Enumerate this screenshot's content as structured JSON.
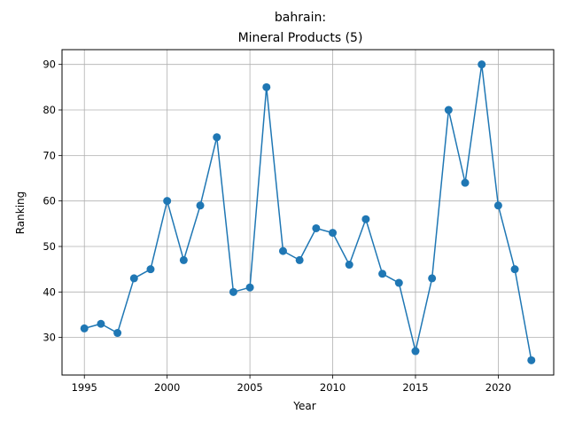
{
  "chart_data": {
    "type": "line",
    "title_line1": "bahrain:",
    "title_line2": "Mineral Products (5)",
    "xlabel": "Year",
    "ylabel": "Ranking",
    "xlim": [
      1993.65,
      2023.35
    ],
    "ylim": [
      21.75,
      93.25
    ],
    "xticks": [
      1995,
      2000,
      2005,
      2010,
      2015,
      2020
    ],
    "yticks": [
      30,
      40,
      50,
      60,
      70,
      80,
      90
    ],
    "grid": true,
    "line_color": "#1f77b4",
    "series": [
      {
        "x": [
          1995,
          1996,
          1997,
          1998,
          1999,
          2000,
          2001,
          2002,
          2003,
          2004,
          2005,
          2006,
          2007,
          2008,
          2009,
          2010,
          2011,
          2012,
          2013,
          2014,
          2015,
          2016,
          2017,
          2018,
          2019,
          2020,
          2021,
          2022
        ],
        "values": [
          32,
          33,
          31,
          43,
          45,
          60,
          47,
          59,
          74,
          40,
          41,
          85,
          49,
          47,
          54,
          53,
          46,
          56,
          44,
          42,
          27,
          43,
          80,
          64,
          90,
          59,
          45,
          25
        ]
      }
    ]
  }
}
